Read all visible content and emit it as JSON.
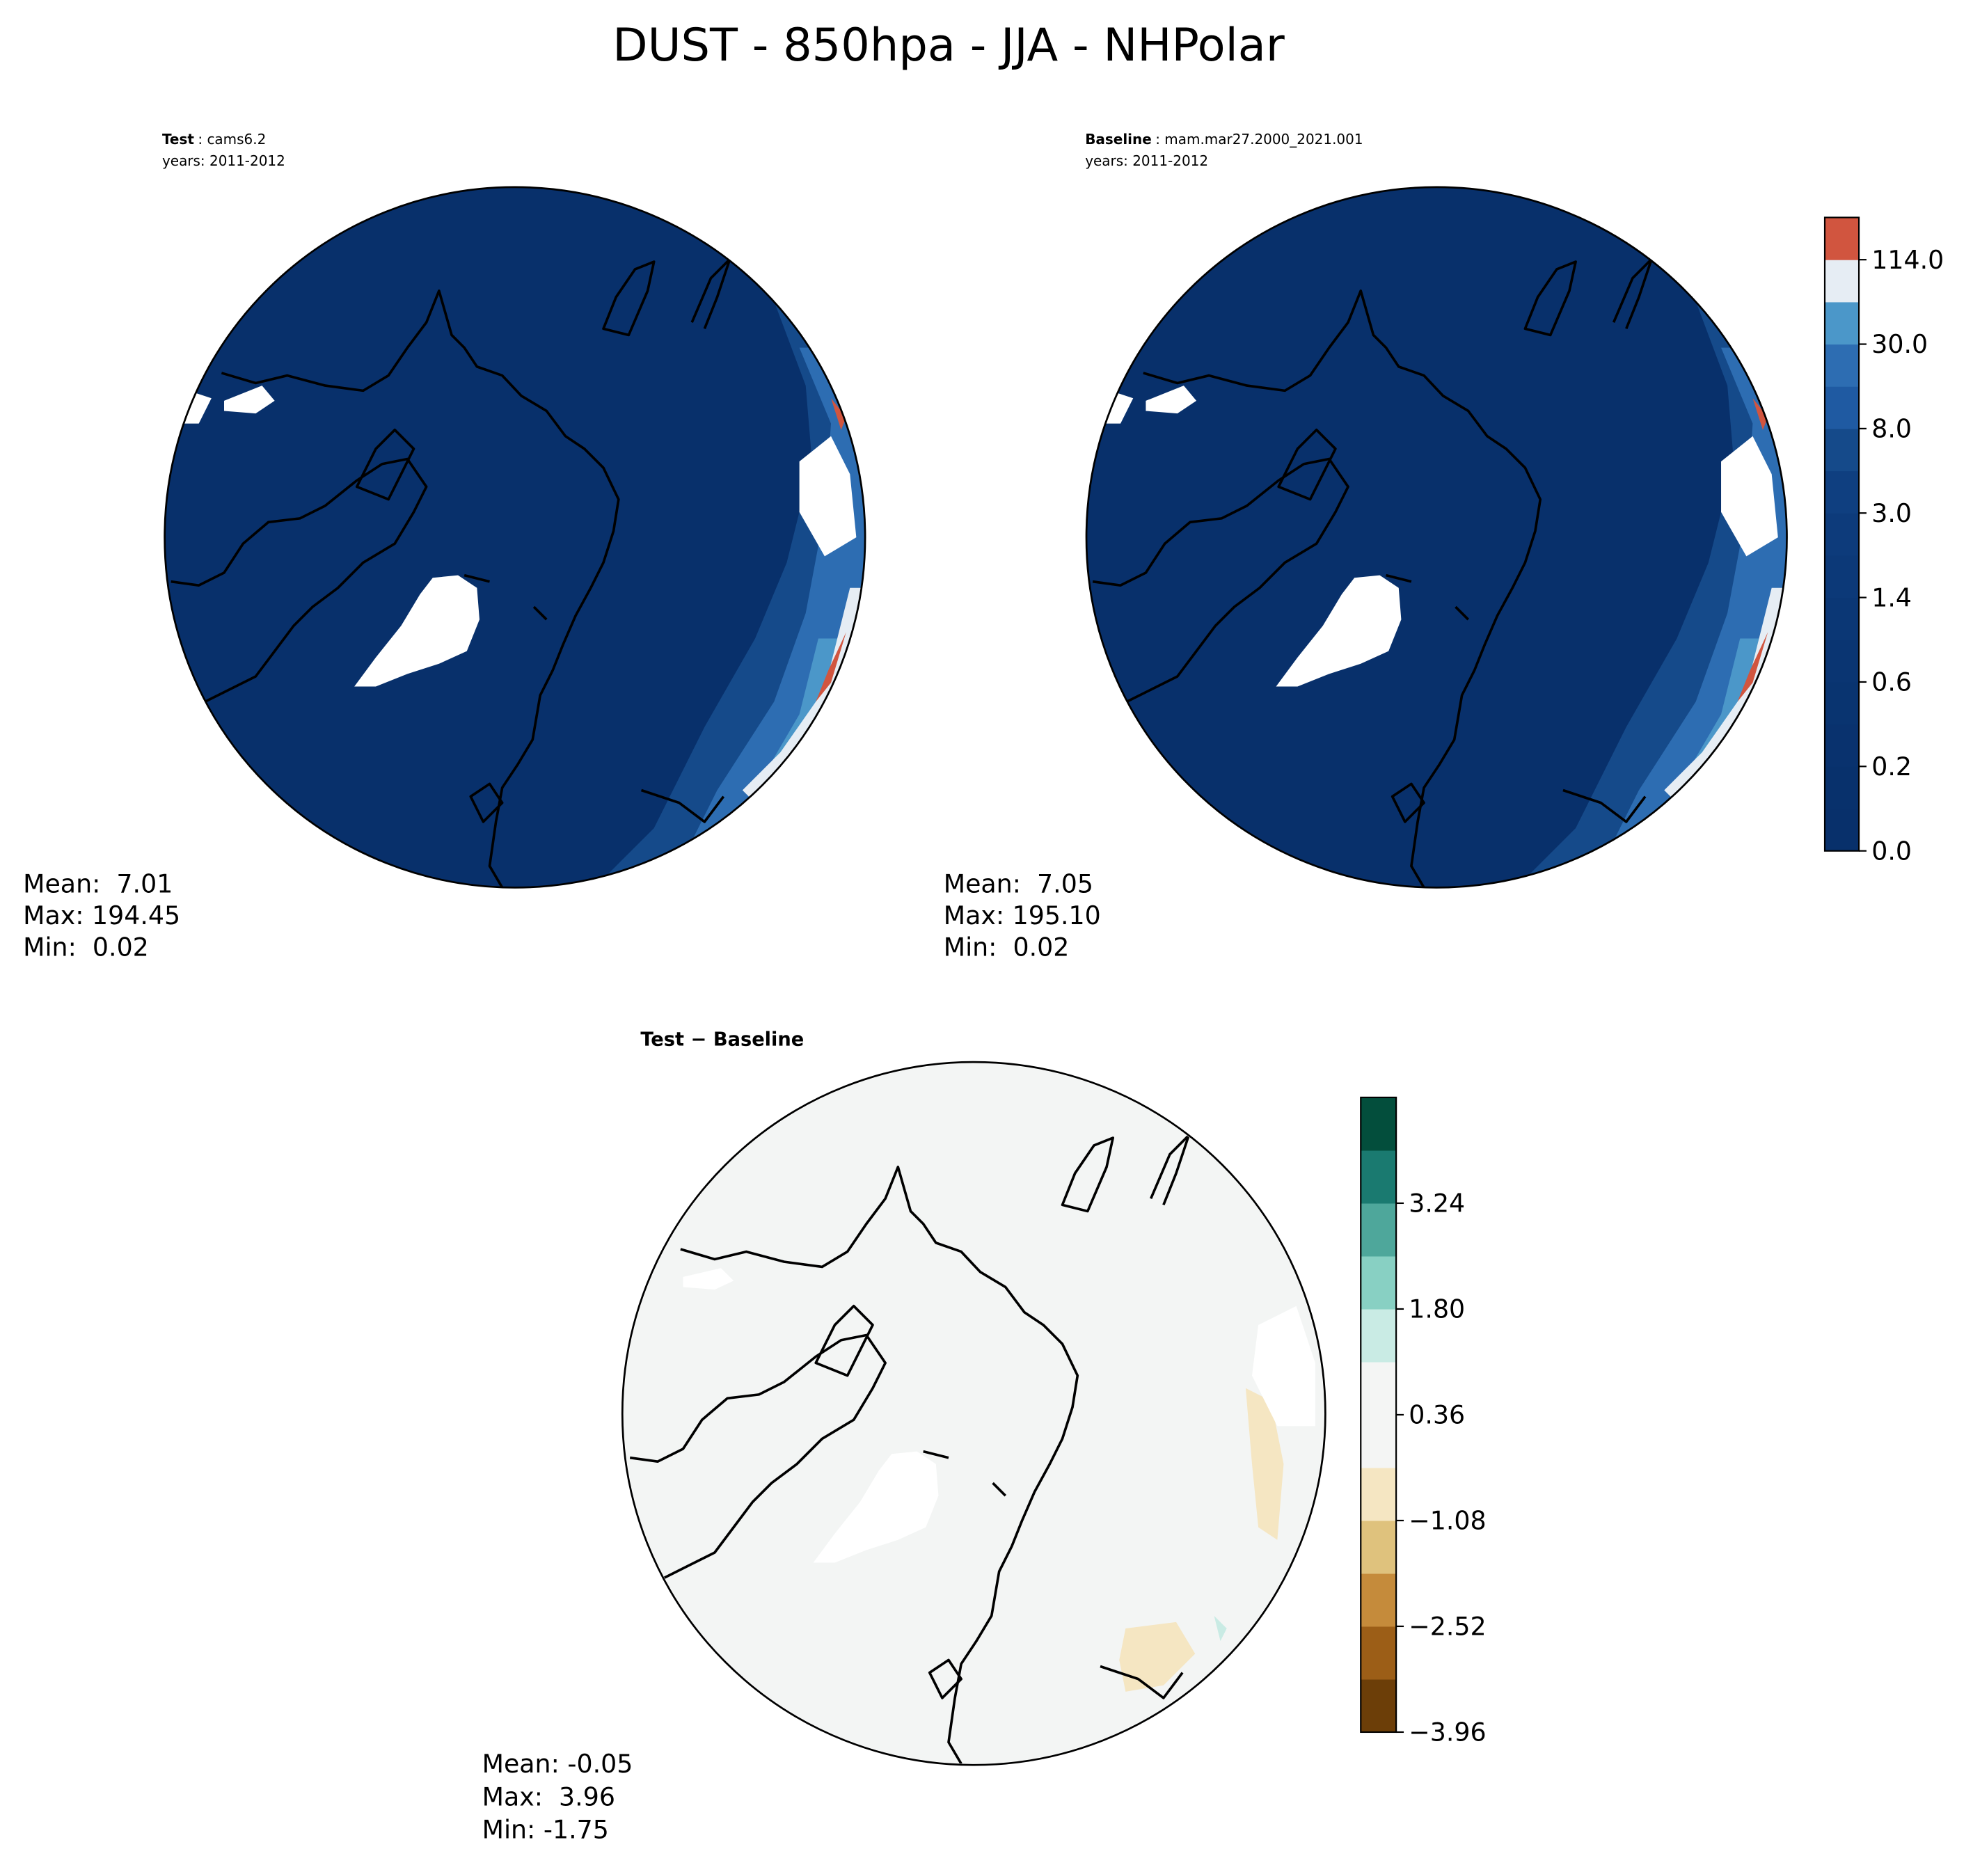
{
  "title": "DUST - 850hpa - JJA - NHPolar",
  "panels": [
    {
      "title_bold": "Test",
      "title_rest": ": cams6.2",
      "years": "years: 2011-2012",
      "stats": [
        "Mean:  7.01",
        "Max: 194.45",
        "Min:  0.02"
      ]
    },
    {
      "title_bold": "Baseline",
      "title_rest": ": mam.mar27.2000_2021.001",
      "years": "years: 2011-2012",
      "stats": [
        "Mean:  7.05",
        "Max: 195.10",
        "Min:  0.02"
      ]
    },
    {
      "title_bold": "Test − Baseline",
      "stats": [
        "Mean: -0.05",
        "Max:  3.96",
        "Min: -1.75"
      ]
    }
  ],
  "colorbars": [
    {
      "ticks": [
        {
          "value": 0,
          "label": "0.0"
        },
        0.2,
        0.6,
        1.4,
        {
          "value": 3,
          "label": "3.0"
        },
        {
          "value": 8,
          "label": "8.0"
        },
        {
          "value": 30,
          "label": "30.0"
        },
        {
          "value": 114,
          "label": "114.0"
        }
      ],
      "colors": [
        "#08306b",
        "#08316c",
        "#09326e",
        "#093470",
        "#0a3572",
        "#0b3775",
        "#0c3978",
        "#0d3b7b",
        "#0f3f80",
        "#154a8a",
        "#1f5aa2",
        "#2d6db2",
        "#4b97c9",
        "#e6edf4",
        "#d1553f"
      ]
    },
    {
      "ticks": [
        {
          "value": -3.96,
          "label": "−3.96"
        },
        {
          "value": -2.52,
          "label": "−2.52"
        },
        {
          "value": -1.08,
          "label": "−1.08"
        },
        0.36,
        {
          "value": 1.8,
          "label": "1.80"
        },
        3.24
      ],
      "colors": [
        "#6c3e08",
        "#9c5e17",
        "#c58b3b",
        "#dfc27d",
        "#f5e6c2",
        "#f4f5f4",
        "#f4f5f4",
        "#c9ebe4",
        "#88d0c3",
        "#4ea79b",
        "#1a7a70",
        "#034e3c"
      ]
    }
  ]
}
